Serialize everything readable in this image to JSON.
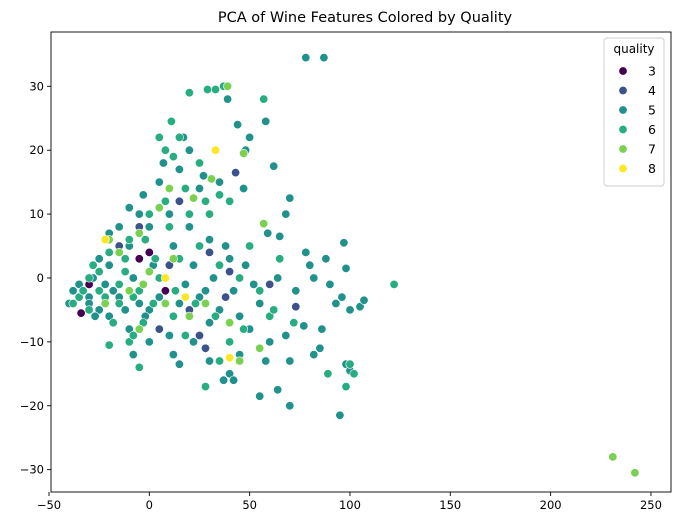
{
  "chart_data": {
    "type": "scatter",
    "title": "PCA of Wine Features Colored by Quality",
    "xlabel": "",
    "ylabel": "",
    "xlim": [
      -49,
      260
    ],
    "ylim": [
      -33.5,
      38.5
    ],
    "xticks": [
      -50,
      0,
      50,
      100,
      150,
      200,
      250
    ],
    "yticks": [
      -30,
      -20,
      -10,
      0,
      10,
      20,
      30
    ],
    "grid": false,
    "legend": {
      "title": "quality",
      "position": "top-right"
    },
    "series": [
      {
        "name": "3",
        "color": "#440154",
        "points": [
          [
            -34,
            -5.5
          ],
          [
            -22,
            -3
          ],
          [
            -15,
            -1
          ],
          [
            -5,
            3
          ],
          [
            0,
            4
          ],
          [
            -30,
            -1
          ],
          [
            8,
            -2
          ],
          [
            -12,
            1
          ]
        ]
      },
      {
        "name": "4",
        "color": "#3b528b",
        "points": [
          [
            -25,
            -2
          ],
          [
            -5,
            8
          ],
          [
            5,
            -8
          ],
          [
            15,
            12
          ],
          [
            20,
            -5
          ],
          [
            30,
            4
          ],
          [
            40,
            1
          ],
          [
            43,
            16.5
          ],
          [
            38,
            -3
          ],
          [
            73,
            -4.5
          ],
          [
            28,
            -11
          ],
          [
            60,
            -1
          ],
          [
            -8,
            -3
          ],
          [
            10,
            2
          ],
          [
            25,
            -9
          ],
          [
            -15,
            5
          ]
        ]
      },
      {
        "name": "5",
        "color": "#21918c",
        "points": [
          [
            78,
            34.5
          ],
          [
            87,
            34.5
          ],
          [
            39,
            28
          ],
          [
            44,
            24
          ],
          [
            50,
            22
          ],
          [
            58,
            24.5
          ],
          [
            48,
            20
          ],
          [
            62,
            17.5
          ],
          [
            35,
            15
          ],
          [
            47,
            14
          ],
          [
            70,
            12.5
          ],
          [
            68,
            10
          ],
          [
            59,
            7
          ],
          [
            65,
            6.5
          ],
          [
            78,
            4
          ],
          [
            80,
            2
          ],
          [
            97,
            5.5
          ],
          [
            88,
            3
          ],
          [
            98,
            1.5
          ],
          [
            82,
            0
          ],
          [
            64,
            0
          ],
          [
            73,
            -2
          ],
          [
            90,
            -1
          ],
          [
            105,
            -4.5
          ],
          [
            107,
            -3.5
          ],
          [
            96,
            -3
          ],
          [
            100,
            -5
          ],
          [
            93,
            -4
          ],
          [
            86,
            -8
          ],
          [
            77,
            -7.5
          ],
          [
            82,
            -12
          ],
          [
            70,
            -13
          ],
          [
            68,
            -9
          ],
          [
            58,
            -13
          ],
          [
            55,
            -18.5
          ],
          [
            60,
            -10
          ],
          [
            64,
            -17.5
          ],
          [
            70,
            -20
          ],
          [
            95,
            -21.5
          ],
          [
            98,
            -13.5
          ],
          [
            100,
            -14.5
          ],
          [
            85,
            -11
          ],
          [
            50,
            -8
          ],
          [
            45,
            -12
          ],
          [
            40,
            -15
          ],
          [
            37,
            -16
          ],
          [
            42,
            -16
          ],
          [
            30,
            -13
          ],
          [
            22,
            -10
          ],
          [
            15,
            -13.5
          ],
          [
            12,
            -12
          ],
          [
            0,
            -5
          ],
          [
            -10,
            -8
          ],
          [
            -20,
            -6
          ],
          [
            -30,
            -3
          ],
          [
            -40,
            -4
          ],
          [
            -38,
            -2
          ],
          [
            -35,
            -1
          ],
          [
            -25,
            -5
          ],
          [
            -15,
            -3
          ],
          [
            -5,
            -4
          ],
          [
            5,
            -3
          ],
          [
            15,
            -4
          ],
          [
            25,
            -3
          ],
          [
            35,
            -5
          ],
          [
            45,
            -6
          ],
          [
            55,
            -4
          ],
          [
            -20,
            2
          ],
          [
            -10,
            5
          ],
          [
            0,
            8
          ],
          [
            10,
            10
          ],
          [
            20,
            8
          ],
          [
            30,
            6
          ],
          [
            40,
            3
          ],
          [
            5,
            15
          ],
          [
            15,
            17
          ],
          [
            20,
            20
          ],
          [
            25,
            14
          ],
          [
            -5,
            10
          ],
          [
            -15,
            8
          ],
          [
            -25,
            3
          ],
          [
            -30,
            -4
          ],
          [
            -18,
            -2
          ],
          [
            -8,
            0
          ],
          [
            2,
            2
          ],
          [
            12,
            5
          ],
          [
            22,
            2
          ],
          [
            32,
            0
          ],
          [
            42,
            -2
          ],
          [
            52,
            -1
          ],
          [
            0,
            -10
          ],
          [
            -8,
            -12
          ],
          [
            10,
            -9
          ],
          [
            30,
            -7
          ],
          [
            -35,
            -3
          ],
          [
            -28,
            0
          ],
          [
            -22,
            -1
          ],
          [
            -12,
            -5
          ],
          [
            -2,
            -6
          ],
          [
            8,
            0
          ],
          [
            18,
            -1
          ],
          [
            28,
            -2
          ],
          [
            38,
            5
          ],
          [
            48,
            2
          ],
          [
            -3,
            13
          ],
          [
            7,
            18
          ],
          [
            17,
            22
          ],
          [
            27,
            16
          ],
          [
            -10,
            11
          ],
          [
            -20,
            7
          ],
          [
            -27,
            -6
          ]
        ]
      },
      {
        "name": "6",
        "color": "#27ad81",
        "points": [
          [
            33,
            29.5
          ],
          [
            37,
            30
          ],
          [
            29,
            29.5
          ],
          [
            57,
            28
          ],
          [
            20,
            29
          ],
          [
            15,
            22
          ],
          [
            11,
            24.5
          ],
          [
            5,
            22
          ],
          [
            8,
            20
          ],
          [
            12,
            19
          ],
          [
            25,
            18
          ],
          [
            35,
            13
          ],
          [
            40,
            12
          ],
          [
            30,
            10
          ],
          [
            20,
            10
          ],
          [
            10,
            8
          ],
          [
            0,
            10
          ],
          [
            -10,
            6
          ],
          [
            -20,
            4
          ],
          [
            -28,
            2
          ],
          [
            -35,
            -3
          ],
          [
            -30,
            -5
          ],
          [
            -25,
            -2
          ],
          [
            -15,
            -4
          ],
          [
            -5,
            -2
          ],
          [
            5,
            0
          ],
          [
            15,
            3
          ],
          [
            25,
            5
          ],
          [
            35,
            2
          ],
          [
            45,
            0
          ],
          [
            55,
            -2
          ],
          [
            65,
            3
          ],
          [
            60,
            -6
          ],
          [
            47,
            -8
          ],
          [
            40,
            -10
          ],
          [
            35,
            -13
          ],
          [
            28,
            -17
          ],
          [
            -5,
            -14
          ],
          [
            -10,
            -10
          ],
          [
            -20,
            -10.5
          ],
          [
            -3,
            -7
          ],
          [
            -8,
            -9
          ],
          [
            2,
            -4
          ],
          [
            12,
            -6
          ],
          [
            18,
            -9
          ],
          [
            -15,
            -1
          ],
          [
            -25,
            1
          ],
          [
            -33,
            -2
          ],
          [
            -38,
            -4
          ],
          [
            -12,
            3
          ],
          [
            -2,
            6
          ],
          [
            8,
            12
          ],
          [
            18,
            14
          ],
          [
            28,
            12
          ],
          [
            50,
            5
          ],
          [
            62,
            -5
          ],
          [
            72,
            -7
          ],
          [
            100,
            -13.5
          ],
          [
            102,
            -15
          ],
          [
            98,
            -17
          ],
          [
            89,
            -15
          ],
          [
            122,
            -1
          ],
          [
            -18,
            -7
          ],
          [
            -8,
            -3
          ],
          [
            3,
            3
          ],
          [
            13,
            -2
          ],
          [
            23,
            -4
          ],
          [
            33,
            -6
          ],
          [
            -30,
            0
          ],
          [
            -22,
            -3
          ],
          [
            -12,
            1
          ]
        ]
      },
      {
        "name": "7",
        "color": "#7ad151",
        "points": [
          [
            231,
            -28
          ],
          [
            242,
            -30.5
          ],
          [
            39,
            30
          ],
          [
            57,
            8.5
          ],
          [
            47,
            19.5
          ],
          [
            31,
            15.5
          ],
          [
            22,
            12.5
          ],
          [
            10,
            14
          ],
          [
            5,
            11
          ],
          [
            -5,
            7
          ],
          [
            -15,
            4
          ],
          [
            -22,
            -4
          ],
          [
            -10,
            -2
          ],
          [
            0,
            1
          ],
          [
            8,
            -4
          ],
          [
            20,
            -6
          ],
          [
            28,
            -4
          ],
          [
            40,
            -7
          ],
          [
            55,
            -11
          ],
          [
            -5,
            -8
          ],
          [
            -20,
            6
          ],
          [
            -3,
            -1
          ],
          [
            12,
            3
          ],
          [
            45,
            -13
          ]
        ]
      },
      {
        "name": "8",
        "color": "#fde725",
        "points": [
          [
            33,
            20
          ],
          [
            -22,
            6
          ],
          [
            8,
            0
          ],
          [
            18,
            -3
          ],
          [
            40,
            -12.5
          ]
        ]
      }
    ]
  }
}
